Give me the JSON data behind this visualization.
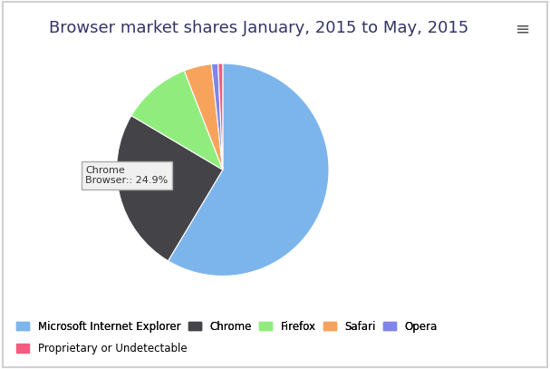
{
  "title": "Browser market shares January, 2015 to May, 2015",
  "slices": [
    {
      "label": "Microsoft Internet Explorer",
      "value": 58.6,
      "color": "#7cb5ec"
    },
    {
      "label": "Chrome",
      "value": 24.9,
      "color": "#434348"
    },
    {
      "label": "Firefox",
      "value": 10.6,
      "color": "#90ed7d"
    },
    {
      "label": "Safari",
      "value": 4.2,
      "color": "#f7a35c"
    },
    {
      "label": "Opera",
      "value": 1.0,
      "color": "#8085e9"
    },
    {
      "label": "Proprietary or Undetectable",
      "value": 0.7,
      "color": "#f15c80"
    }
  ],
  "tooltip_label": "Chrome",
  "tooltip_text": "Browser:: 24.9%",
  "background_color": "#ffffff",
  "border_color": "#d0d0d0",
  "title_fontsize": 13,
  "legend_fontsize": 8.5,
  "startangle": 90,
  "menu_icon": "≡"
}
